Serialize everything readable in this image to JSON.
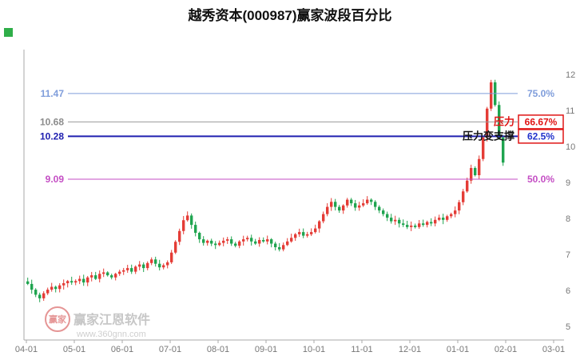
{
  "title": "越秀资本(000987)赢家波段百分比",
  "indicator": {
    "color": "#2fae49"
  },
  "watermark": {
    "brand": "赢家江恩软件",
    "url": "www.360gnn.com",
    "logo_text": "赢家"
  },
  "colors": {
    "up": "#e43c36",
    "down": "#1fa44f",
    "axis": "#aaaaaa",
    "box": "#e01515"
  },
  "chart_data": {
    "type": "candlestick",
    "title": "越秀资本(000987)赢家波段百分比",
    "stock_name": "越秀资本",
    "stock_code": "000987",
    "y_ticks": [
      12,
      11,
      10,
      9,
      8,
      7,
      6,
      5
    ],
    "x_ticks": [
      "04-01",
      "05-01",
      "06-01",
      "07-01",
      "08-01",
      "09-01",
      "10-01",
      "11-01",
      "12-01",
      "01-01",
      "02-01",
      "03-01"
    ],
    "ylim": [
      5,
      12
    ],
    "grid": false,
    "first_open": 6.25,
    "closes": [
      6.18,
      6.02,
      5.88,
      5.78,
      5.92,
      6.02,
      6.1,
      6.04,
      6.14,
      6.2,
      6.26,
      6.22,
      6.26,
      6.32,
      6.22,
      6.36,
      6.42,
      6.32,
      6.46,
      6.5,
      6.42,
      6.36,
      6.46,
      6.52,
      6.56,
      6.62,
      6.52,
      6.66,
      6.72,
      6.62,
      6.76,
      6.86,
      6.74,
      6.64,
      6.7,
      6.78,
      7.05,
      7.35,
      7.65,
      7.95,
      8.08,
      7.82,
      7.6,
      7.42,
      7.32,
      7.38,
      7.3,
      7.26,
      7.32,
      7.38,
      7.42,
      7.3,
      7.24,
      7.36,
      7.42,
      7.46,
      7.36,
      7.3,
      7.4,
      7.36,
      7.42,
      7.3,
      7.2,
      7.14,
      7.26,
      7.36,
      7.46,
      7.56,
      7.62,
      7.52,
      7.56,
      7.62,
      7.72,
      7.92,
      8.12,
      8.32,
      8.46,
      8.32,
      8.22,
      8.36,
      8.52,
      8.42,
      8.3,
      8.36,
      8.42,
      8.52,
      8.46,
      8.32,
      8.22,
      8.12,
      8.02,
      7.92,
      7.96,
      7.86,
      7.82,
      7.76,
      7.8,
      7.76,
      7.86,
      7.82,
      7.9,
      7.86,
      7.96,
      8.02,
      7.96,
      8.06,
      8.12,
      8.22,
      8.45,
      8.75,
      9.05,
      9.4,
      9.2,
      9.65,
      10.25,
      11.05,
      11.78,
      11.15,
      10.25,
      9.55
    ],
    "levels": [
      {
        "price": "11.47",
        "value": 11.47,
        "pct": "75.0%",
        "line_color": "#7f9ddb",
        "price_color": "#7f9ddb",
        "pct_color": "#7f9ddb",
        "width": 1,
        "boxed": false,
        "note": "",
        "note_color": ""
      },
      {
        "price": "10.68",
        "value": 10.68,
        "pct": "66.67%",
        "line_color": "#9a9a9a",
        "price_color": "#8c8c8c",
        "pct_color": "#e01515",
        "width": 1,
        "boxed": true,
        "note": "压力",
        "note_color": "#e01515"
      },
      {
        "price": "10.28",
        "value": 10.28,
        "pct": "62.5%",
        "line_color": "#2020b0",
        "price_color": "#2020b0",
        "pct_color": "#2233cc",
        "width": 2,
        "boxed": true,
        "note": "压力变支撑",
        "note_color": "#141414"
      },
      {
        "price": "9.09",
        "value": 9.09,
        "pct": "50.0%",
        "line_color": "#c44ec4",
        "price_color": "#c44ec4",
        "pct_color": "#c44ec4",
        "width": 1,
        "boxed": false,
        "note": "",
        "note_color": ""
      }
    ]
  }
}
